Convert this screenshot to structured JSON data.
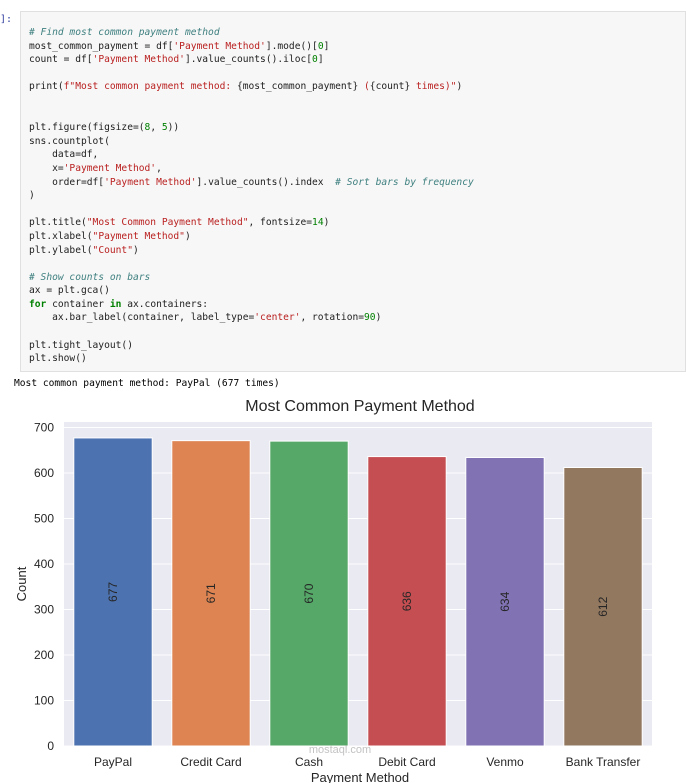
{
  "cell": {
    "prompt": "]:",
    "code_lines": [
      [
        [
          "c",
          "# Find most common payment method"
        ]
      ],
      [
        [
          "t",
          "most_common_payment = df["
        ],
        [
          "s",
          "'Payment Method'"
        ],
        [
          "t",
          "].mode()["
        ],
        [
          "n",
          "0"
        ],
        [
          "t",
          "]"
        ]
      ],
      [
        [
          "t",
          "count = df["
        ],
        [
          "s",
          "'Payment Method'"
        ],
        [
          "t",
          "].value_counts().iloc["
        ],
        [
          "n",
          "0"
        ],
        [
          "t",
          "]"
        ]
      ],
      [],
      [
        [
          "t",
          "print("
        ],
        [
          "s",
          "f\"Most common payment method: "
        ],
        [
          "t",
          "{most_common_payment}"
        ],
        [
          "s",
          " ("
        ],
        [
          "t",
          "{count}"
        ],
        [
          "s",
          " times)\""
        ],
        [
          "t",
          ")"
        ]
      ],
      [],
      [],
      [
        [
          "t",
          "plt.figure(figsize=("
        ],
        [
          "n",
          "8"
        ],
        [
          "t",
          ", "
        ],
        [
          "n",
          "5"
        ],
        [
          "t",
          "))"
        ]
      ],
      [
        [
          "t",
          "sns.countplot("
        ]
      ],
      [
        [
          "t",
          "    data=df,"
        ]
      ],
      [
        [
          "t",
          "    x="
        ],
        [
          "s",
          "'Payment Method'"
        ],
        [
          "t",
          ","
        ]
      ],
      [
        [
          "t",
          "    order=df["
        ],
        [
          "s",
          "'Payment Method'"
        ],
        [
          "t",
          "].value_counts().index  "
        ],
        [
          "c",
          "# Sort bars by frequency"
        ]
      ],
      [
        [
          "t",
          ")"
        ]
      ],
      [],
      [
        [
          "t",
          "plt.title("
        ],
        [
          "s",
          "\"Most Common Payment Method\""
        ],
        [
          "t",
          ", fontsize="
        ],
        [
          "n",
          "14"
        ],
        [
          "t",
          ")"
        ]
      ],
      [
        [
          "t",
          "plt.xlabel("
        ],
        [
          "s",
          "\"Payment Method\""
        ],
        [
          "t",
          ")"
        ]
      ],
      [
        [
          "t",
          "plt.ylabel("
        ],
        [
          "s",
          "\"Count\""
        ],
        [
          "t",
          ")"
        ]
      ],
      [],
      [
        [
          "c",
          "# Show counts on bars"
        ]
      ],
      [
        [
          "t",
          "ax = plt.gca()"
        ]
      ],
      [
        [
          "k",
          "for"
        ],
        [
          "t",
          " container "
        ],
        [
          "k",
          "in"
        ],
        [
          "t",
          " ax.containers:"
        ]
      ],
      [
        [
          "t",
          "    ax.bar_label(container, label_type="
        ],
        [
          "s",
          "'center'"
        ],
        [
          "t",
          ", rotation="
        ],
        [
          "n",
          "90"
        ],
        [
          "t",
          ")"
        ]
      ],
      [],
      [
        [
          "t",
          "plt.tight_layout()"
        ]
      ],
      [
        [
          "t",
          "plt.show()"
        ]
      ]
    ]
  },
  "output_text": "Most common payment method: PayPal (677 times)",
  "watermark": "mostaql.com",
  "chart_data": {
    "type": "bar",
    "title": "Most Common Payment Method",
    "xlabel": "Payment Method",
    "ylabel": "Count",
    "categories": [
      "PayPal",
      "Credit Card",
      "Cash",
      "Debit Card",
      "Venmo",
      "Bank Transfer"
    ],
    "values": [
      677,
      671,
      670,
      636,
      634,
      612
    ],
    "data_labels": [
      "677",
      "671",
      "670",
      "636",
      "634",
      "612"
    ],
    "ylim": [
      0,
      712
    ],
    "yticks": [
      0,
      100,
      200,
      300,
      400,
      500,
      600,
      700
    ],
    "grid": true,
    "bar_colors": [
      "#4c72b0",
      "#dd8452",
      "#55a868",
      "#c44e52",
      "#8172b3",
      "#937860"
    ],
    "background": "#eaeaf2"
  }
}
